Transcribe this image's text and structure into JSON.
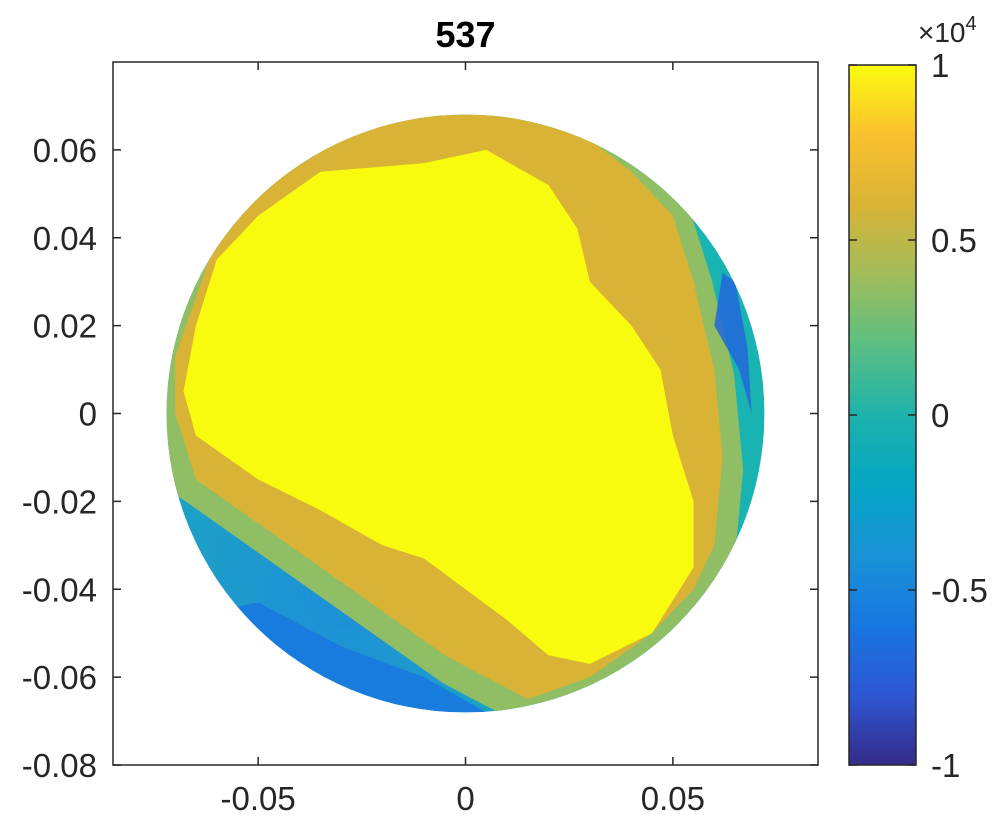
{
  "chart_data": {
    "type": "heatmap",
    "title": "537",
    "xlabel": "",
    "ylabel": "",
    "xlim": [
      -0.085,
      0.085
    ],
    "ylim": [
      -0.08,
      0.08
    ],
    "x_ticks": [
      {
        "value": -0.05,
        "label": "-0.05"
      },
      {
        "value": 0,
        "label": "0"
      },
      {
        "value": 0.05,
        "label": "0.05"
      }
    ],
    "y_ticks": [
      {
        "value": 0.06,
        "label": "0.06"
      },
      {
        "value": 0.04,
        "label": "0.04"
      },
      {
        "value": 0.02,
        "label": "0.02"
      },
      {
        "value": 0,
        "label": "0"
      },
      {
        "value": -0.02,
        "label": "-0.02"
      },
      {
        "value": -0.04,
        "label": "-0.04"
      },
      {
        "value": -0.06,
        "label": "-0.06"
      },
      {
        "value": -0.08,
        "label": "-0.08"
      }
    ],
    "domain": {
      "shape": "circle",
      "center": [
        0,
        0
      ],
      "radius": 0.07
    },
    "colorbar": {
      "colormap": "parula",
      "range": [
        -10000,
        10000
      ],
      "exponent_label": "×10",
      "exponent_power": "4",
      "ticks": [
        {
          "value": 10000,
          "label": "1"
        },
        {
          "value": 5000,
          "label": "0.5"
        },
        {
          "value": 0,
          "label": "0"
        },
        {
          "value": -5000,
          "label": "-0.5"
        },
        {
          "value": -10000,
          "label": "-1"
        }
      ]
    },
    "field": {
      "description_values": "approximate contour regions in data units (x, y, value)",
      "regions": [
        {
          "value": 6000,
          "polygon": [
            [
              -0.07,
              0.013
            ],
            [
              -0.06,
              0.04
            ],
            [
              -0.04,
              0.06
            ],
            [
              -0.02,
              0.068
            ],
            [
              0.005,
              0.07
            ],
            [
              0.025,
              0.066
            ],
            [
              0.04,
              0.055
            ],
            [
              0.05,
              0.045
            ],
            [
              0.055,
              0.03
            ],
            [
              0.06,
              0.01
            ],
            [
              0.062,
              -0.01
            ],
            [
              0.06,
              -0.03
            ],
            [
              0.055,
              -0.04
            ],
            [
              0.045,
              -0.05
            ],
            [
              0.03,
              -0.06
            ],
            [
              0.015,
              -0.065
            ],
            [
              -0.005,
              -0.055
            ],
            [
              -0.02,
              -0.045
            ],
            [
              -0.035,
              -0.035
            ],
            [
              -0.05,
              -0.025
            ],
            [
              -0.065,
              -0.015
            ],
            [
              -0.07,
              0.0
            ]
          ]
        },
        {
          "value": 10000,
          "polygon": [
            [
              -0.065,
              0.02
            ],
            [
              -0.06,
              0.035
            ],
            [
              -0.05,
              0.045
            ],
            [
              -0.035,
              0.055
            ],
            [
              -0.01,
              0.057
            ],
            [
              0.005,
              0.06
            ],
            [
              0.02,
              0.052
            ],
            [
              0.027,
              0.042
            ],
            [
              0.03,
              0.03
            ],
            [
              0.04,
              0.02
            ],
            [
              0.047,
              0.01
            ],
            [
              0.05,
              -0.005
            ],
            [
              0.055,
              -0.02
            ],
            [
              0.055,
              -0.035
            ],
            [
              0.045,
              -0.05
            ],
            [
              0.03,
              -0.057
            ],
            [
              0.02,
              -0.055
            ],
            [
              0.01,
              -0.047
            ],
            [
              0.0,
              -0.04
            ],
            [
              -0.01,
              -0.033
            ],
            [
              -0.02,
              -0.03
            ],
            [
              -0.035,
              -0.022
            ],
            [
              -0.05,
              -0.015
            ],
            [
              -0.065,
              -0.005
            ],
            [
              -0.068,
              0.005
            ]
          ]
        }
      ],
      "cold_regions": [
        {
          "value": -6000,
          "polygon": [
            [
              -0.06,
              -0.045
            ],
            [
              -0.045,
              -0.055
            ],
            [
              -0.03,
              -0.065
            ],
            [
              -0.015,
              -0.068
            ],
            [
              0.005,
              -0.068
            ],
            [
              -0.01,
              -0.06
            ],
            [
              -0.03,
              -0.053
            ],
            [
              -0.05,
              -0.043
            ]
          ]
        },
        {
          "value": -7000,
          "polygon": [
            [
              0.065,
              0.03
            ],
            [
              0.068,
              0.015
            ],
            [
              0.069,
              0.0
            ],
            [
              0.066,
              0.01
            ],
            [
              0.06,
              0.02
            ],
            [
              0.062,
              0.032
            ]
          ]
        }
      ]
    }
  }
}
